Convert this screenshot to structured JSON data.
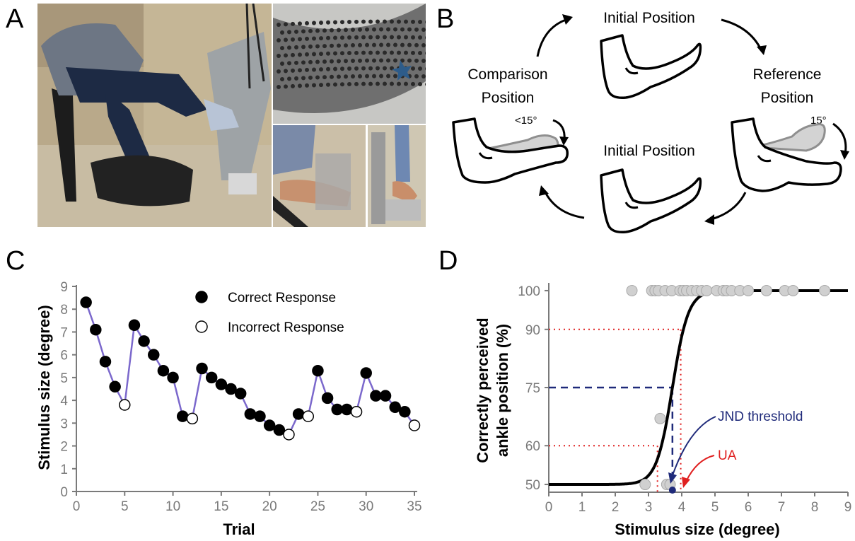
{
  "panels": {
    "a": {
      "letter": "A"
    },
    "b": {
      "letter": "B",
      "label_initial_top": "Initial Position",
      "label_reference_1": "Reference",
      "label_reference_2": "Position",
      "label_comparison_1": "Comparison",
      "label_comparison_2": "Position",
      "label_initial_bottom": "Initial Position",
      "angle_reference": "15°",
      "angle_comparison": "<15°"
    },
    "c": {
      "letter": "C"
    },
    "d": {
      "letter": "D",
      "jnd_label": "JND threshold",
      "ua_label": "UA"
    }
  },
  "colors": {
    "staircase_line": "#7b68cc",
    "jnd_color": "#1f2a7a",
    "ua_color": "#e02020",
    "grey_point": "#d0d0d0",
    "axis_grey": "#7a7a7a"
  },
  "chart_data": [
    {
      "type": "line",
      "xlabel": "Trial",
      "ylabel": "Stimulus size (degree)",
      "xlim": [
        0,
        35
      ],
      "ylim": [
        0,
        9
      ],
      "xticks": [
        0,
        5,
        10,
        15,
        20,
        25,
        30,
        35
      ],
      "yticks": [
        0,
        1,
        2,
        3,
        4,
        5,
        6,
        7,
        8,
        9
      ],
      "legend": [
        "Correct Response",
        "Incorrect Response"
      ],
      "legend_position": "top-right",
      "series": [
        {
          "name": "Stimulus size",
          "x": [
            1,
            2,
            3,
            4,
            5,
            6,
            7,
            8,
            9,
            10,
            11,
            12,
            13,
            14,
            15,
            16,
            17,
            18,
            19,
            20,
            21,
            22,
            23,
            24,
            25,
            26,
            27,
            28,
            29,
            30,
            31,
            32,
            33,
            34,
            35
          ],
          "y": [
            8.3,
            7.1,
            5.7,
            4.6,
            3.8,
            7.3,
            6.6,
            6.0,
            5.3,
            5.0,
            3.3,
            3.2,
            5.4,
            5.0,
            4.7,
            4.5,
            4.3,
            3.4,
            3.3,
            2.9,
            2.7,
            2.5,
            3.4,
            3.3,
            5.3,
            4.1,
            3.6,
            3.6,
            3.5,
            5.2,
            4.2,
            4.2,
            3.7,
            3.5,
            2.9
          ],
          "correct": [
            true,
            true,
            true,
            true,
            false,
            true,
            true,
            true,
            true,
            true,
            true,
            false,
            true,
            true,
            true,
            true,
            true,
            true,
            true,
            true,
            true,
            false,
            true,
            false,
            true,
            true,
            true,
            true,
            false,
            true,
            true,
            true,
            true,
            true,
            false
          ]
        }
      ]
    },
    {
      "type": "scatter",
      "xlabel": "Stimulus size (degree)",
      "ylabel_line1": "Correctly perceived",
      "ylabel_line2": "ankle position (%)",
      "xlim": [
        0,
        9
      ],
      "ylim": [
        48,
        102
      ],
      "xticks": [
        0,
        1,
        2,
        3,
        4,
        5,
        6,
        7,
        8,
        9
      ],
      "yticks": [
        50,
        60,
        75,
        90,
        100
      ],
      "fit_curve": {
        "type": "logistic",
        "min": 50,
        "max": 100,
        "x50": 3.72,
        "slope": 4.2
      },
      "jnd_threshold": {
        "x": 3.72,
        "y": 75
      },
      "ua_range": {
        "x_low": 3.27,
        "x_high": 3.97,
        "y_low": 60,
        "y_high": 90
      },
      "points": [
        {
          "x": 2.9,
          "y": 50
        },
        {
          "x": 3.55,
          "y": 50
        },
        {
          "x": 3.65,
          "y": 50
        },
        {
          "x": 3.35,
          "y": 67
        },
        {
          "x": 2.5,
          "y": 100
        },
        {
          "x": 3.1,
          "y": 100
        },
        {
          "x": 3.2,
          "y": 100
        },
        {
          "x": 3.3,
          "y": 100
        },
        {
          "x": 3.5,
          "y": 100
        },
        {
          "x": 3.7,
          "y": 100
        },
        {
          "x": 3.95,
          "y": 100
        },
        {
          "x": 4.05,
          "y": 100
        },
        {
          "x": 4.15,
          "y": 100
        },
        {
          "x": 4.3,
          "y": 100
        },
        {
          "x": 4.45,
          "y": 100
        },
        {
          "x": 4.6,
          "y": 100
        },
        {
          "x": 4.75,
          "y": 100
        },
        {
          "x": 5.05,
          "y": 100
        },
        {
          "x": 5.25,
          "y": 100
        },
        {
          "x": 5.35,
          "y": 100
        },
        {
          "x": 5.5,
          "y": 100
        },
        {
          "x": 5.75,
          "y": 100
        },
        {
          "x": 6.0,
          "y": 100
        },
        {
          "x": 6.55,
          "y": 100
        },
        {
          "x": 7.1,
          "y": 100
        },
        {
          "x": 7.35,
          "y": 100
        },
        {
          "x": 8.3,
          "y": 100
        }
      ]
    }
  ]
}
